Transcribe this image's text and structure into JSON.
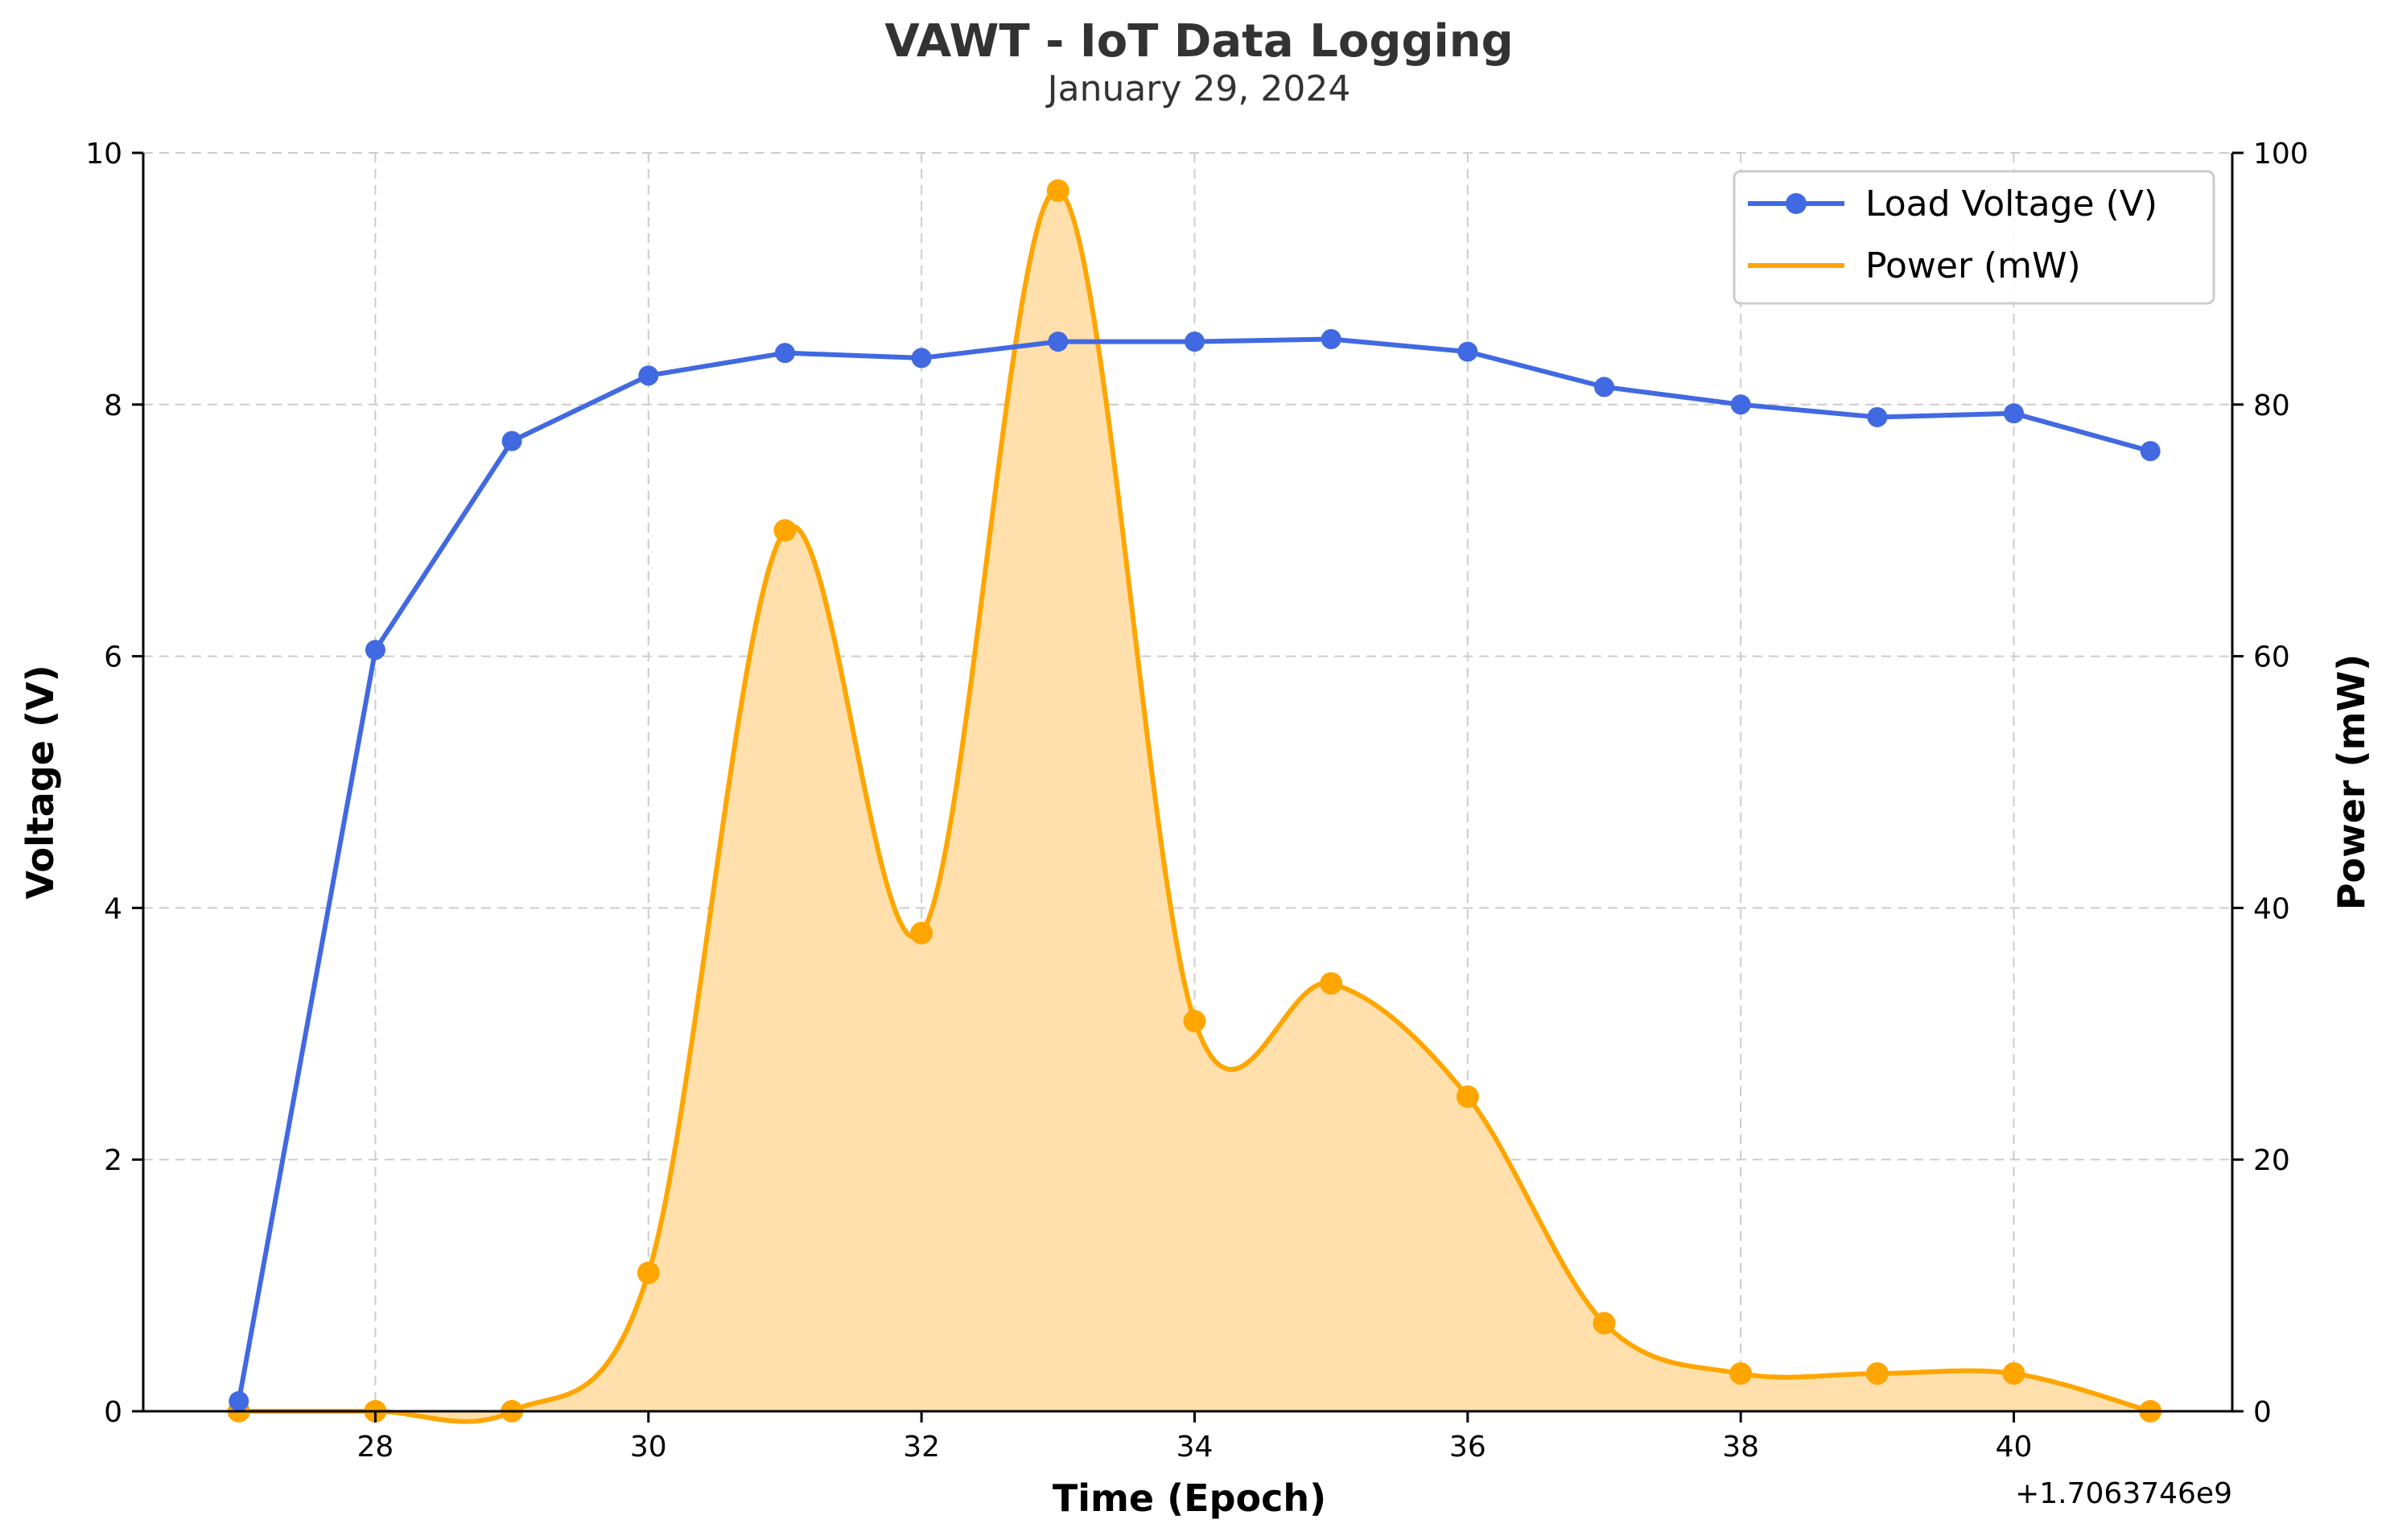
{
  "chart_data": {
    "type": "line",
    "title": "VAWT - IoT Data Logging",
    "subtitle": "January 29, 2024",
    "xlabel": "Time (Epoch)",
    "x_offset_label": "+1.7063746e9",
    "y_left_label": "Voltage (V)",
    "y_right_label": "Power (mW)",
    "xlim": [
      26.3,
      41.6
    ],
    "ylim_left": [
      0,
      10
    ],
    "ylim_right": [
      0,
      100
    ],
    "x_ticks": [
      28,
      30,
      32,
      34,
      36,
      38,
      40
    ],
    "y_left_ticks": [
      0,
      2,
      4,
      6,
      8,
      10
    ],
    "y_right_ticks": [
      0,
      20,
      40,
      60,
      80,
      100
    ],
    "grid": true,
    "legend_position": "top-right",
    "x": [
      27,
      28,
      29,
      30,
      31,
      32,
      33,
      34,
      35,
      36,
      37,
      38,
      39,
      40,
      41
    ],
    "series": [
      {
        "name": "Load Voltage (V)",
        "axis": "left",
        "color": "#4169e1",
        "marker": "circle",
        "values": [
          0.08,
          6.05,
          7.71,
          8.23,
          8.41,
          8.37,
          8.5,
          8.5,
          8.52,
          8.42,
          8.14,
          8.0,
          7.9,
          7.93,
          7.63
        ]
      },
      {
        "name": "Power (mW)",
        "axis": "right",
        "color": "#ffa500",
        "fill_color": "#ffe0ac",
        "smooth": true,
        "values": [
          0,
          0,
          0,
          11,
          70,
          38,
          97,
          31,
          34,
          25,
          7,
          3,
          3,
          3,
          0
        ]
      }
    ]
  }
}
